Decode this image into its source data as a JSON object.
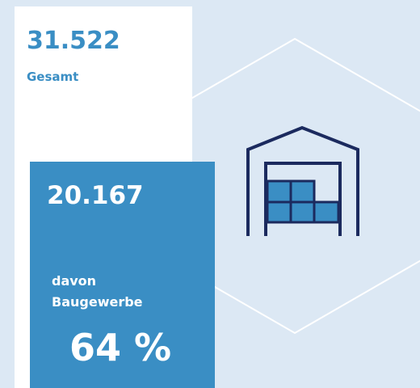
{
  "total": {
    "value": "31.522",
    "label": "Gesamt"
  },
  "construction": {
    "value": "20.167",
    "label_line1": "davon",
    "label_line2": "Baugewerbe",
    "share": "64 %"
  }
}
